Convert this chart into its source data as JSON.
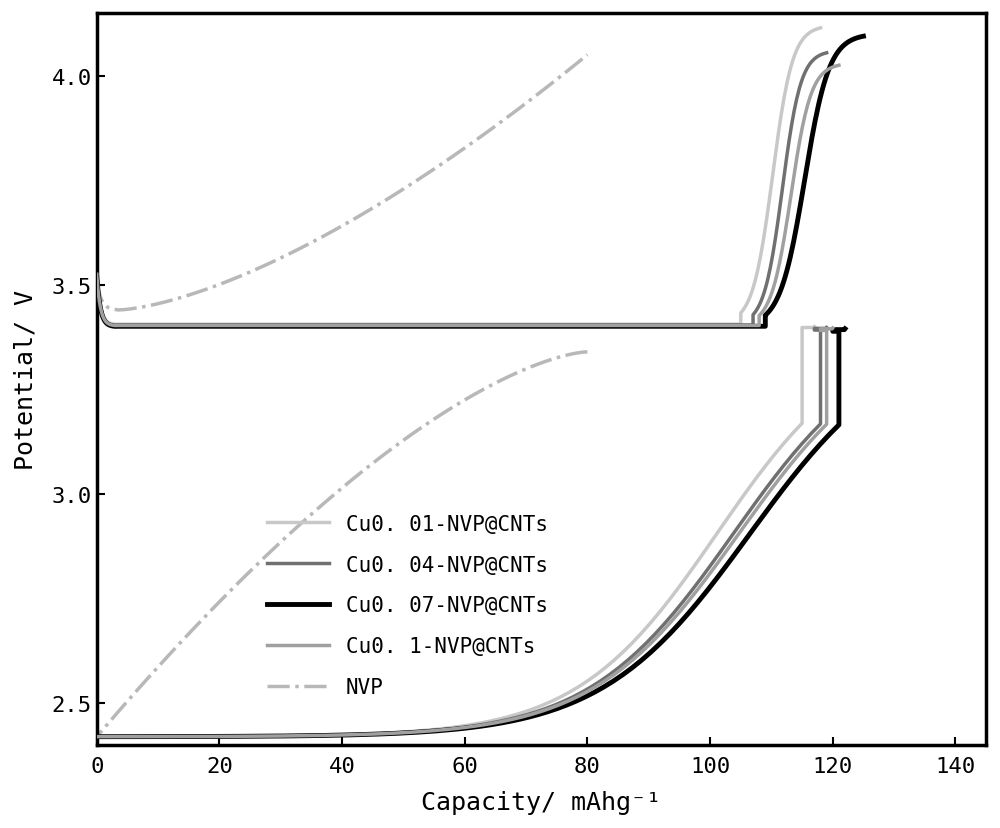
{
  "xlabel": "Capacity/ mAhg⁻¹",
  "ylabel": "Potential/ V",
  "xlim": [
    0,
    145
  ],
  "ylim": [
    2.4,
    4.15
  ],
  "xticks": [
    0,
    20,
    40,
    60,
    80,
    100,
    120,
    140
  ],
  "yticks": [
    2.5,
    3.0,
    3.5,
    4.0
  ],
  "curves": [
    {
      "label": "Cu0. 01-NVP@CNTs",
      "color": "#c8c8c8",
      "lw": 2.5,
      "ls": "-",
      "charge_cap": 118,
      "discharge_cap": 117,
      "charge_plateau_v": 3.405,
      "discharge_plateau_v": 3.395,
      "charge_end_v": 4.12,
      "discharge_end_v": 2.42,
      "charge_rise_start": 107,
      "discharge_drop_start": 3,
      "discharge_drop_end": 113
    },
    {
      "label": "Cu0. 04-NVP@CNTs",
      "color": "#707070",
      "lw": 2.5,
      "ls": "-",
      "charge_cap": 119,
      "discharge_cap": 119,
      "charge_plateau_v": 3.403,
      "discharge_plateau_v": 3.393,
      "charge_end_v": 4.06,
      "discharge_end_v": 2.42,
      "charge_rise_start": 109,
      "discharge_drop_start": 3,
      "discharge_drop_end": 116
    },
    {
      "label": "Cu0. 07-NVP@CNTs",
      "color": "#000000",
      "lw": 3.5,
      "ls": "-",
      "charge_cap": 125,
      "discharge_cap": 122,
      "charge_plateau_v": 3.4,
      "discharge_plateau_v": 3.39,
      "charge_end_v": 4.1,
      "discharge_end_v": 2.42,
      "charge_rise_start": 111,
      "discharge_drop_start": 3,
      "discharge_drop_end": 119
    },
    {
      "label": "Cu0. 1-NVP@CNTs",
      "color": "#a0a0a0",
      "lw": 2.5,
      "ls": "-",
      "charge_cap": 121,
      "discharge_cap": 120,
      "charge_plateau_v": 3.402,
      "discharge_plateau_v": 3.392,
      "charge_end_v": 4.03,
      "discharge_end_v": 2.42,
      "charge_rise_start": 110,
      "discharge_drop_start": 3,
      "discharge_drop_end": 117
    }
  ],
  "nvp": {
    "label": "NVP",
    "color": "#b8b8b8",
    "lw": 2.5,
    "ls": "-.",
    "charge_cap": 80,
    "discharge_cap": 80,
    "charge_plateau_v": 3.44,
    "discharge_plateau_v": 3.34,
    "charge_end_v": 4.05,
    "discharge_end_v": 2.42
  },
  "font_size": 18,
  "tick_font_size": 16,
  "legend_font_size": 15
}
